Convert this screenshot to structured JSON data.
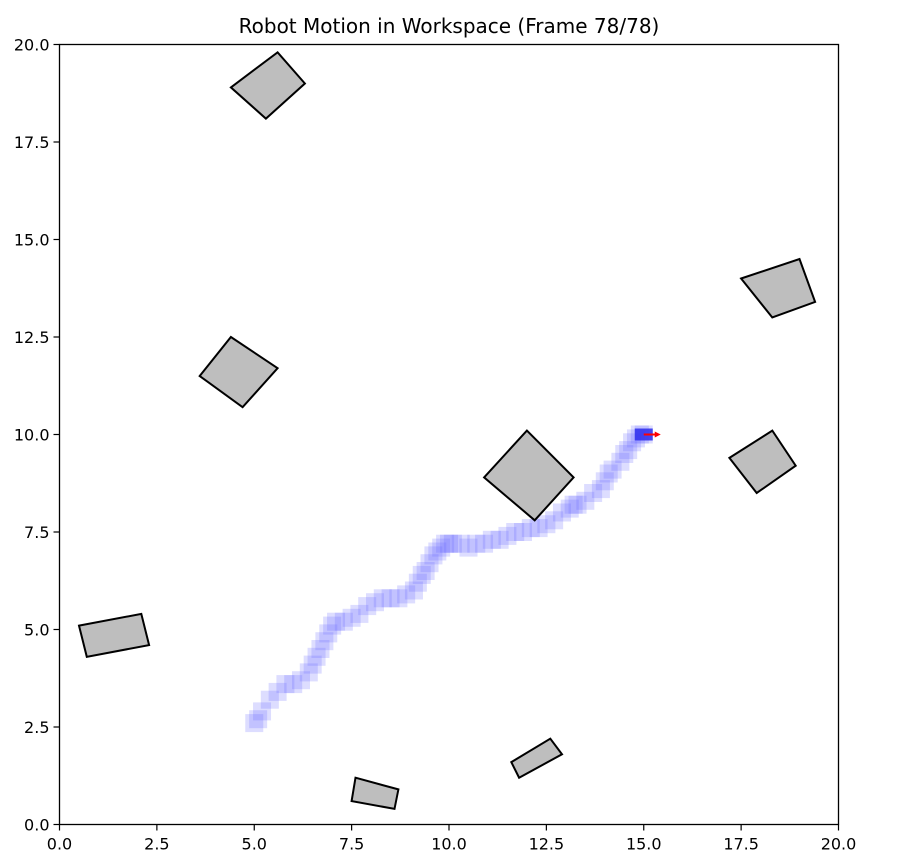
{
  "chart_data": {
    "type": "scatter",
    "title": "Robot Motion in Workspace (Frame 78/78)",
    "xlabel": "",
    "ylabel": "",
    "xlim": [
      0.0,
      20.0
    ],
    "ylim": [
      0.0,
      20.0
    ],
    "grid": false,
    "x_ticks": [
      "0.0",
      "2.5",
      "5.0",
      "7.5",
      "10.0",
      "12.5",
      "15.0",
      "17.5",
      "20.0"
    ],
    "y_ticks": [
      "0.0",
      "2.5",
      "5.0",
      "7.5",
      "10.0",
      "12.5",
      "15.0",
      "17.5",
      "20.0"
    ],
    "colors": {
      "obstacle_fill": "#bebebe",
      "obstacle_edge": "#000000",
      "trail": "#6666ff",
      "robot": "#3333ee",
      "heading": "#ff0000"
    },
    "obstacles": [
      {
        "polygon": [
          [
            4.4,
            18.9
          ],
          [
            5.6,
            19.8
          ],
          [
            6.3,
            19.0
          ],
          [
            5.3,
            18.1
          ]
        ]
      },
      {
        "polygon": [
          [
            17.5,
            14.0
          ],
          [
            19.0,
            14.5
          ],
          [
            19.4,
            13.4
          ],
          [
            18.3,
            13.0
          ]
        ]
      },
      {
        "polygon": [
          [
            3.6,
            11.5
          ],
          [
            4.4,
            12.5
          ],
          [
            5.6,
            11.7
          ],
          [
            4.7,
            10.7
          ]
        ]
      },
      {
        "polygon": [
          [
            10.9,
            8.9
          ],
          [
            12.0,
            10.1
          ],
          [
            13.2,
            8.9
          ],
          [
            12.2,
            7.8
          ]
        ]
      },
      {
        "polygon": [
          [
            17.2,
            9.4
          ],
          [
            18.3,
            10.1
          ],
          [
            18.9,
            9.2
          ],
          [
            17.9,
            8.5
          ]
        ]
      },
      {
        "polygon": [
          [
            0.5,
            5.1
          ],
          [
            2.1,
            5.4
          ],
          [
            2.3,
            4.6
          ],
          [
            0.7,
            4.3
          ]
        ]
      },
      {
        "polygon": [
          [
            11.6,
            1.6
          ],
          [
            12.6,
            2.2
          ],
          [
            12.9,
            1.8
          ],
          [
            11.8,
            1.2
          ]
        ]
      },
      {
        "polygon": [
          [
            7.6,
            1.2
          ],
          [
            8.7,
            0.9
          ],
          [
            8.6,
            0.4
          ],
          [
            7.5,
            0.6
          ]
        ]
      }
    ],
    "trajectory": {
      "x": [
        5.0,
        5.1,
        5.2,
        5.4,
        5.6,
        5.8,
        6.0,
        6.2,
        6.4,
        6.5,
        6.6,
        6.7,
        6.8,
        6.9,
        7.0,
        7.1,
        7.3,
        7.5,
        7.7,
        7.9,
        8.1,
        8.3,
        8.5,
        8.7,
        8.9,
        9.1,
        9.2,
        9.3,
        9.4,
        9.5,
        9.6,
        9.7,
        9.8,
        9.9,
        10.0,
        10.1,
        10.3,
        10.5,
        10.7,
        10.9,
        11.1,
        11.3,
        11.5,
        11.7,
        11.9,
        12.1,
        12.3,
        12.5,
        12.7,
        12.9,
        13.1,
        13.2,
        13.3,
        13.5,
        13.7,
        13.9,
        14.0,
        14.1,
        14.2,
        14.4,
        14.5,
        14.6,
        14.7,
        14.8,
        14.9,
        15.0
      ],
      "y": [
        2.6,
        2.7,
        2.9,
        3.2,
        3.4,
        3.6,
        3.6,
        3.7,
        3.9,
        4.1,
        4.3,
        4.5,
        4.7,
        4.9,
        5.1,
        5.2,
        5.2,
        5.3,
        5.4,
        5.6,
        5.7,
        5.8,
        5.8,
        5.8,
        5.9,
        6.0,
        6.2,
        6.4,
        6.5,
        6.7,
        6.9,
        7.0,
        7.1,
        7.2,
        7.2,
        7.2,
        7.2,
        7.1,
        7.2,
        7.2,
        7.3,
        7.3,
        7.4,
        7.5,
        7.5,
        7.6,
        7.6,
        7.7,
        7.8,
        8.0,
        8.1,
        8.2,
        8.2,
        8.3,
        8.5,
        8.6,
        8.8,
        9.0,
        9.1,
        9.3,
        9.5,
        9.6,
        9.8,
        9.9,
        10.0,
        10.0
      ]
    },
    "robot": {
      "x": 15.0,
      "y": 10.0,
      "heading_deg": 0
    }
  }
}
